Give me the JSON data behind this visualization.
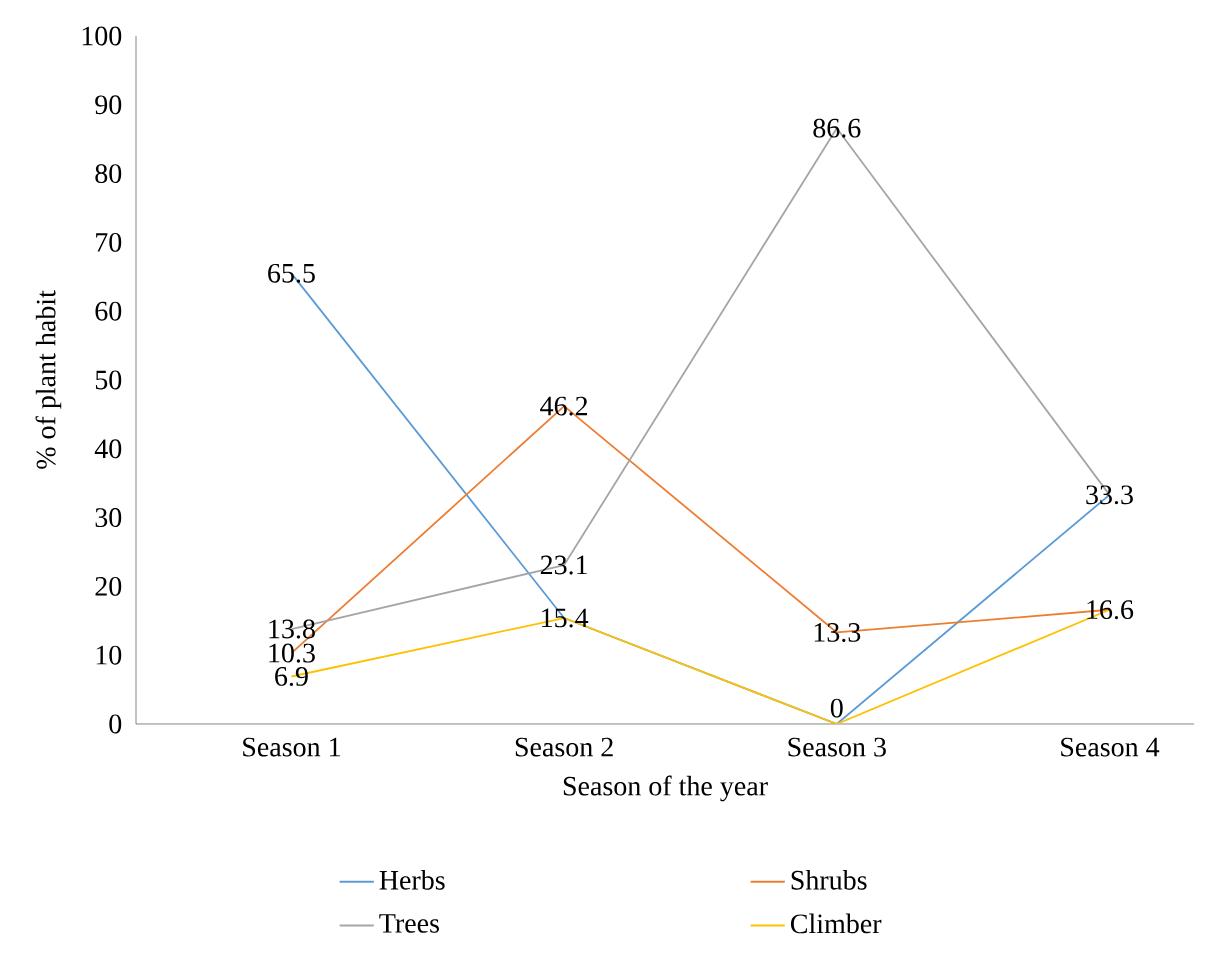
{
  "chart_data": {
    "type": "line",
    "xlabel": "Season of the year",
    "ylabel": "% of plant habit",
    "categories": [
      "Season 1",
      "Season 2",
      "Season 3",
      "Season 4"
    ],
    "series": [
      {
        "name": "Herbs",
        "color": "#5b9bd5",
        "values": [
          65.5,
          15.4,
          0,
          33.3
        ],
        "value_labels": [
          "65.5",
          null,
          "0",
          "33.3"
        ]
      },
      {
        "name": "Shrubs",
        "color": "#ed7d31",
        "values": [
          10.3,
          46.2,
          13.3,
          16.6
        ],
        "value_labels": [
          "10.3",
          "46.2",
          "13.3",
          "16.6"
        ]
      },
      {
        "name": "Trees",
        "color": "#a5a5a5",
        "values": [
          13.8,
          23.1,
          86.6,
          33.3
        ],
        "value_labels": [
          "13.8",
          "23.1",
          "86.6",
          null
        ]
      },
      {
        "name": "Climber",
        "color": "#ffc000",
        "values": [
          6.9,
          15.4,
          0,
          16.6
        ],
        "value_labels": [
          "6.9",
          "15.4",
          null,
          null
        ]
      }
    ],
    "ylim": [
      0,
      100
    ],
    "yticks": [
      0,
      10,
      20,
      30,
      40,
      50,
      60,
      70,
      80,
      90,
      100
    ],
    "grid": false,
    "legend": "bottom"
  }
}
